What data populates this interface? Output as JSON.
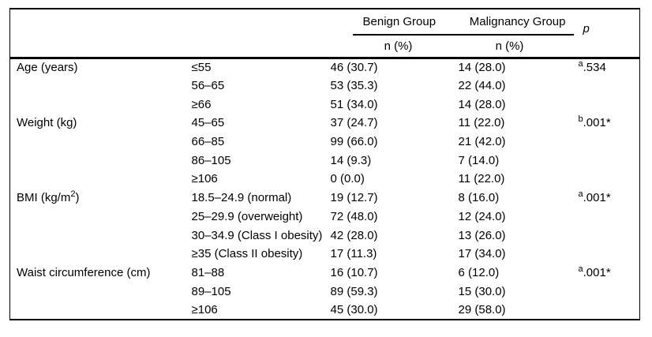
{
  "header": {
    "benign_group": "Benign Group",
    "malignancy_group": "Malignancy Group",
    "p": "p",
    "benign_sub": "n (%)",
    "malignancy_sub": "n (%)"
  },
  "rows": [
    {
      "label": "Age (years)",
      "label_sup": "",
      "label_post": "",
      "category": "≤55",
      "benign": "46 (30.7)",
      "malignancy": "14 (28.0)",
      "p_sup": "a",
      "p_val": ".534"
    },
    {
      "label": "",
      "label_sup": "",
      "label_post": "",
      "category": "56–65",
      "benign": "53 (35.3)",
      "malignancy": "22 (44.0)",
      "p_sup": "",
      "p_val": ""
    },
    {
      "label": "",
      "label_sup": "",
      "label_post": "",
      "category": "≥66",
      "benign": "51 (34.0)",
      "malignancy": "14 (28.0)",
      "p_sup": "",
      "p_val": ""
    },
    {
      "label": "Weight (kg)",
      "label_sup": "",
      "label_post": "",
      "category": "45–65",
      "benign": "37 (24.7)",
      "malignancy": "11 (22.0)",
      "p_sup": "b",
      "p_val": ".001*"
    },
    {
      "label": "",
      "label_sup": "",
      "label_post": "",
      "category": "66–85",
      "benign": "99 (66.0)",
      "malignancy": "21 (42.0)",
      "p_sup": "",
      "p_val": ""
    },
    {
      "label": "",
      "label_sup": "",
      "label_post": "",
      "category": "86–105",
      "benign": "14 (9.3)",
      "malignancy": "7 (14.0)",
      "p_sup": "",
      "p_val": ""
    },
    {
      "label": "",
      "label_sup": "",
      "label_post": "",
      "category": "≥106",
      "benign": "0 (0.0)",
      "malignancy": "11 (22.0)",
      "p_sup": "",
      "p_val": ""
    },
    {
      "label": "BMI (kg/m",
      "label_sup": "2",
      "label_post": ")",
      "category": "18.5–24.9 (normal)",
      "benign": "19 (12.7)",
      "malignancy": "8 (16.0)",
      "p_sup": "a",
      "p_val": ".001*"
    },
    {
      "label": "",
      "label_sup": "",
      "label_post": "",
      "category": "25–29.9 (overweight)",
      "benign": "72 (48.0)",
      "malignancy": "12 (24.0)",
      "p_sup": "",
      "p_val": ""
    },
    {
      "label": "",
      "label_sup": "",
      "label_post": "",
      "category": "30–34.9 (Class I obesity)",
      "benign": "42 (28.0)",
      "malignancy": "13 (26.0)",
      "p_sup": "",
      "p_val": ""
    },
    {
      "label": "",
      "label_sup": "",
      "label_post": "",
      "category": "≥35 (Class II obesity)",
      "benign": "17 (11.3)",
      "malignancy": "17 (34.0)",
      "p_sup": "",
      "p_val": ""
    },
    {
      "label": "Waist circumference (cm)",
      "label_sup": "",
      "label_post": "",
      "category": "81–88",
      "benign": "16 (10.7)",
      "malignancy": "6 (12.0)",
      "p_sup": "a",
      "p_val": ".001*"
    },
    {
      "label": "",
      "label_sup": "",
      "label_post": "",
      "category": "89–105",
      "benign": "89 (59.3)",
      "malignancy": "15 (30.0)",
      "p_sup": "",
      "p_val": ""
    },
    {
      "label": "",
      "label_sup": "",
      "label_post": "",
      "category": "≥106",
      "benign": "45 (30.0)",
      "malignancy": "29 (58.0)",
      "p_sup": "",
      "p_val": ""
    }
  ],
  "colors": {
    "text": "#000000",
    "border": "#000000",
    "background": "#ffffff"
  }
}
